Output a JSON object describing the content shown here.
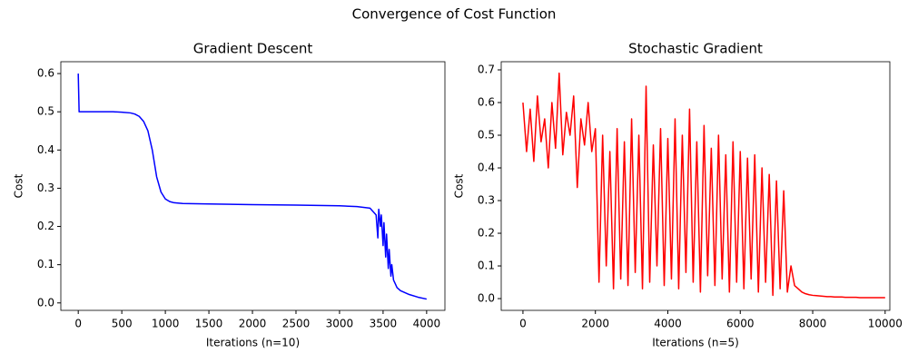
{
  "suptitle": "Convergence of Cost Function",
  "chart_data": [
    {
      "type": "line",
      "title": "Gradient Descent",
      "xlabel": "Iterations (n=10)",
      "ylabel": "Cost",
      "xlim": [
        -200,
        4210
      ],
      "ylim": [
        -0.0195,
        0.631
      ],
      "xticks": [
        0,
        500,
        1000,
        1500,
        2000,
        2500,
        3000,
        3500,
        4000
      ],
      "yticks": [
        {
          "value": 0,
          "label": "0.0"
        },
        0.1,
        0.2,
        0.3,
        0.4,
        0.5,
        0.6
      ],
      "series": [
        {
          "color": "#0000ff",
          "x": [
            0,
            10,
            100,
            200,
            300,
            400,
            500,
            600,
            650,
            700,
            750,
            800,
            850,
            900,
            950,
            1000,
            1050,
            1100,
            1200,
            1500,
            2000,
            2500,
            3000,
            3200,
            3350,
            3420,
            3440,
            3450,
            3470,
            3480,
            3500,
            3510,
            3530,
            3540,
            3560,
            3570,
            3590,
            3600,
            3620,
            3640,
            3660,
            3700,
            3800,
            3900,
            4000
          ],
          "values": [
            0.6,
            0.5,
            0.5,
            0.5,
            0.5,
            0.5,
            0.499,
            0.497,
            0.494,
            0.488,
            0.475,
            0.45,
            0.4,
            0.33,
            0.29,
            0.272,
            0.265,
            0.262,
            0.26,
            0.259,
            0.257,
            0.256,
            0.254,
            0.252,
            0.248,
            0.23,
            0.17,
            0.245,
            0.2,
            0.23,
            0.15,
            0.21,
            0.12,
            0.18,
            0.09,
            0.14,
            0.07,
            0.1,
            0.06,
            0.05,
            0.04,
            0.032,
            0.022,
            0.015,
            0.01
          ]
        }
      ]
    },
    {
      "type": "line",
      "title": "Stochastic Gradient",
      "xlabel": "Iterations (n=5)",
      "ylabel": "Cost",
      "xlim": [
        -600,
        10130
      ],
      "ylim": [
        -0.036,
        0.725
      ],
      "xticks": [
        0,
        2000,
        4000,
        6000,
        8000,
        10000
      ],
      "yticks": [
        {
          "value": 0,
          "label": "0.0"
        },
        0.1,
        0.2,
        0.3,
        0.4,
        0.5,
        0.6,
        0.7
      ],
      "series": [
        {
          "color": "#ff0000",
          "x": [
            0,
            100,
            200,
            300,
            400,
            500,
            600,
            700,
            800,
            900,
            1000,
            1100,
            1200,
            1300,
            1400,
            1500,
            1600,
            1700,
            1800,
            1900,
            2000,
            2100,
            2200,
            2300,
            2400,
            2500,
            2600,
            2700,
            2800,
            2900,
            3000,
            3100,
            3200,
            3300,
            3400,
            3500,
            3600,
            3700,
            3800,
            3900,
            4000,
            4100,
            4200,
            4300,
            4400,
            4500,
            4600,
            4700,
            4800,
            4900,
            5000,
            5100,
            5200,
            5300,
            5400,
            5500,
            5600,
            5700,
            5800,
            5900,
            6000,
            6100,
            6200,
            6300,
            6400,
            6500,
            6600,
            6700,
            6800,
            6900,
            7000,
            7100,
            7200,
            7300,
            7400,
            7500,
            7600,
            7700,
            7800,
            7900,
            8000,
            8100,
            8200,
            8300,
            8400,
            8500,
            8600,
            8700,
            8800,
            8900,
            9000,
            9100,
            9200,
            9300,
            9400,
            9500,
            9600,
            9700,
            9800,
            9900,
            10000
          ],
          "values": [
            0.6,
            0.45,
            0.58,
            0.42,
            0.62,
            0.48,
            0.55,
            0.4,
            0.6,
            0.46,
            0.69,
            0.44,
            0.57,
            0.5,
            0.62,
            0.34,
            0.55,
            0.47,
            0.6,
            0.45,
            0.52,
            0.05,
            0.5,
            0.1,
            0.45,
            0.03,
            0.52,
            0.06,
            0.48,
            0.04,
            0.55,
            0.08,
            0.5,
            0.03,
            0.65,
            0.05,
            0.47,
            0.1,
            0.52,
            0.04,
            0.49,
            0.06,
            0.55,
            0.03,
            0.5,
            0.08,
            0.58,
            0.05,
            0.48,
            0.02,
            0.53,
            0.07,
            0.46,
            0.04,
            0.5,
            0.06,
            0.44,
            0.02,
            0.48,
            0.05,
            0.45,
            0.03,
            0.43,
            0.06,
            0.44,
            0.02,
            0.4,
            0.05,
            0.38,
            0.01,
            0.36,
            0.03,
            0.33,
            0.02,
            0.1,
            0.04,
            0.03,
            0.02,
            0.015,
            0.012,
            0.01,
            0.009,
            0.008,
            0.007,
            0.006,
            0.006,
            0.005,
            0.005,
            0.005,
            0.004,
            0.004,
            0.004,
            0.004,
            0.003,
            0.003,
            0.003,
            0.003,
            0.003,
            0.003,
            0.003,
            0.003
          ]
        }
      ]
    }
  ]
}
